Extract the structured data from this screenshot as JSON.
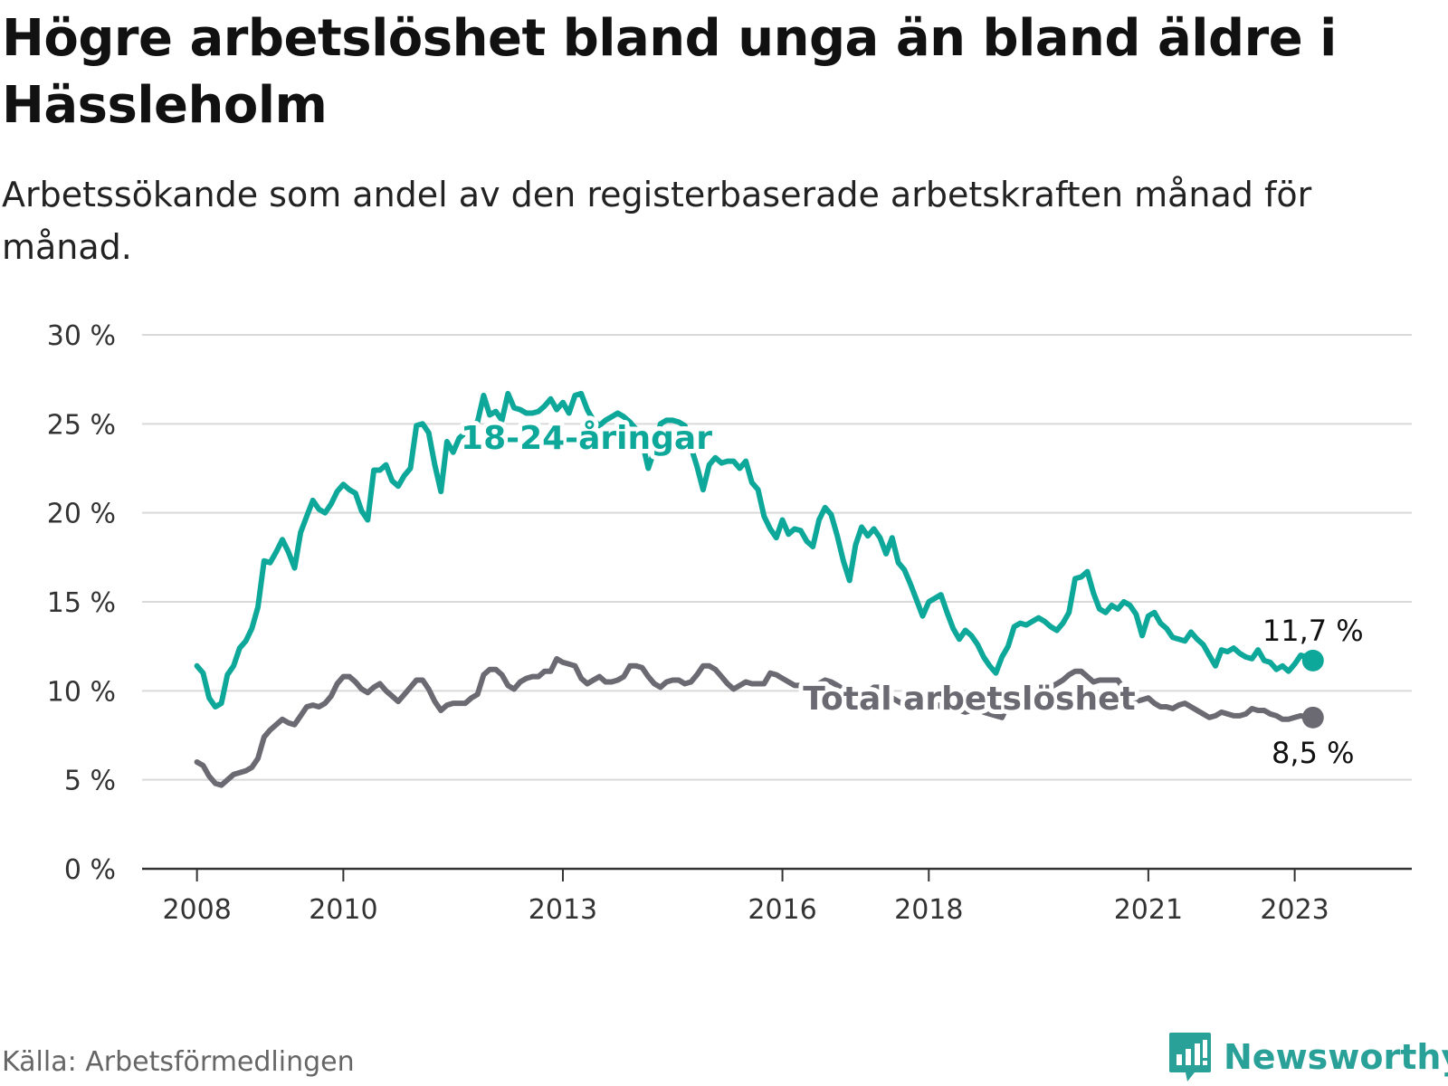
{
  "title": "Högre arbetslöshet bland unga än bland äldre i Hässleholm",
  "subtitle": "Arbetssökande som andel av den registerbaserade arbetskraften månad för månad.",
  "source": "Källa: Arbetsförmedlingen",
  "brand": "Newsworthy",
  "colors": {
    "youth": "#0ea89a",
    "total": "#6b6a72",
    "grid": "#d9d9d9",
    "axis": "#333333"
  },
  "chart_data": {
    "type": "line",
    "title": "Högre arbetslöshet bland unga än bland äldre i Hässleholm",
    "xlabel": "",
    "ylabel": "",
    "ylim": [
      0,
      30
    ],
    "xlim": [
      2007.25,
      2024.6
    ],
    "grid": true,
    "yticks": [
      0,
      5,
      10,
      15,
      20,
      25,
      30
    ],
    "ytick_labels": [
      "0 %",
      "5 %",
      "10 %",
      "15 %",
      "20 %",
      "25 %",
      "30 %"
    ],
    "xticks": [
      2008,
      2010,
      2013,
      2016,
      2018,
      2021,
      2023
    ],
    "xtick_labels": [
      "2008",
      "2010",
      "2013",
      "2016",
      "2018",
      "2021",
      "2023"
    ],
    "series": [
      {
        "name": "18-24-åringar",
        "label": "18-24-åringar",
        "end_label": "11,7 %",
        "x_start": 2008.0,
        "step": 0.08333,
        "values": [
          11.4,
          11.0,
          9.6,
          9.1,
          9.3,
          10.9,
          11.4,
          12.4,
          12.8,
          13.5,
          14.7,
          17.3,
          17.2,
          17.8,
          18.5,
          17.8,
          16.9,
          18.9,
          19.8,
          20.7,
          20.2,
          20.0,
          20.5,
          21.2,
          21.6,
          21.3,
          21.1,
          20.1,
          19.6,
          22.4,
          22.4,
          22.7,
          21.8,
          21.5,
          22.1,
          22.5,
          24.9,
          25.0,
          24.5,
          22.7,
          21.2,
          24.0,
          23.4,
          24.2,
          24.5,
          24.9,
          25.1,
          26.6,
          25.5,
          25.7,
          25.2,
          26.7,
          25.9,
          25.8,
          25.6,
          25.6,
          25.7,
          26.0,
          26.4,
          25.8,
          26.2,
          25.6,
          26.6,
          26.7,
          25.8,
          25.2,
          24.9,
          25.2,
          25.4,
          25.6,
          25.4,
          25.1,
          24.7,
          24.0,
          22.5,
          23.5,
          25.0,
          25.2,
          25.2,
          25.1,
          24.9,
          23.7,
          22.6,
          21.3,
          22.7,
          23.1,
          22.8,
          22.9,
          22.9,
          22.5,
          22.9,
          21.7,
          21.3,
          19.8,
          19.1,
          18.6,
          19.6,
          18.8,
          19.1,
          19.0,
          18.4,
          18.1,
          19.6,
          20.3,
          19.9,
          18.7,
          17.3,
          16.2,
          18.2,
          19.2,
          18.7,
          19.1,
          18.6,
          17.7,
          18.6,
          17.2,
          16.8,
          16.0,
          15.1,
          14.2,
          15.0,
          15.2,
          15.4,
          14.4,
          13.5,
          12.9,
          13.4,
          13.1,
          12.6,
          11.9,
          11.4,
          11.0,
          11.9,
          12.5,
          13.6,
          13.8,
          13.7,
          13.9,
          14.1,
          13.9,
          13.6,
          13.4,
          13.8,
          14.4,
          16.3,
          16.4,
          16.7,
          15.5,
          14.6,
          14.4,
          14.8,
          14.6,
          15.0,
          14.8,
          14.3,
          13.1,
          14.2,
          14.4,
          13.8,
          13.5,
          13.0,
          12.9,
          12.8,
          13.3,
          12.9,
          12.6,
          12.0,
          11.4,
          12.3,
          12.2,
          12.4,
          12.1,
          11.9,
          11.8,
          12.3,
          11.7,
          11.6,
          11.2,
          11.4,
          11.1,
          11.5,
          12.0,
          11.9,
          11.7
        ]
      },
      {
        "name": "Total arbetslöshet",
        "label": "Total arbetslöshet",
        "end_label": "8,5 %",
        "x_start": 2008.0,
        "step": 0.08333,
        "values": [
          6.0,
          5.8,
          5.2,
          4.8,
          4.7,
          5.0,
          5.3,
          5.4,
          5.5,
          5.7,
          6.2,
          7.4,
          7.8,
          8.1,
          8.4,
          8.2,
          8.1,
          8.6,
          9.1,
          9.2,
          9.1,
          9.3,
          9.7,
          10.4,
          10.8,
          10.8,
          10.5,
          10.1,
          9.9,
          10.2,
          10.4,
          10.0,
          9.7,
          9.4,
          9.8,
          10.2,
          10.6,
          10.6,
          10.1,
          9.4,
          8.9,
          9.2,
          9.3,
          9.3,
          9.3,
          9.6,
          9.8,
          10.9,
          11.2,
          11.2,
          10.9,
          10.3,
          10.1,
          10.5,
          10.7,
          10.8,
          10.8,
          11.1,
          11.1,
          11.8,
          11.6,
          11.5,
          11.4,
          10.7,
          10.4,
          10.6,
          10.8,
          10.5,
          10.5,
          10.6,
          10.8,
          11.4,
          11.4,
          11.3,
          10.8,
          10.4,
          10.2,
          10.5,
          10.6,
          10.6,
          10.4,
          10.5,
          10.9,
          11.4,
          11.4,
          11.2,
          10.8,
          10.4,
          10.1,
          10.3,
          10.5,
          10.4,
          10.4,
          10.4,
          11.0,
          10.9,
          10.7,
          10.5,
          10.3,
          10.3,
          10.2,
          10.0,
          10.4,
          10.6,
          10.5,
          10.3,
          10.1,
          9.9,
          9.8,
          9.7,
          9.9,
          10.2,
          10.2,
          9.9,
          9.6,
          9.4,
          9.2,
          9.1,
          9.3,
          9.5,
          9.4,
          9.3,
          9.1,
          9.0,
          9.0,
          8.9,
          8.8,
          8.9,
          9.0,
          8.8,
          8.7,
          8.6,
          8.5,
          9.2,
          9.6,
          9.8,
          10.0,
          10.1,
          10.0,
          10.1,
          10.2,
          10.4,
          10.6,
          10.9,
          11.1,
          11.1,
          10.8,
          10.5,
          10.6,
          10.6,
          10.6,
          10.6,
          10.1,
          9.8,
          9.4,
          9.5,
          9.6,
          9.3,
          9.1,
          9.1,
          9.0,
          9.2,
          9.3,
          9.1,
          8.9,
          8.7,
          8.5,
          8.6,
          8.8,
          8.7,
          8.6,
          8.6,
          8.7,
          9.0,
          8.9,
          8.9,
          8.7,
          8.6,
          8.4,
          8.4,
          8.5,
          8.6,
          8.5,
          8.5
        ]
      }
    ]
  }
}
